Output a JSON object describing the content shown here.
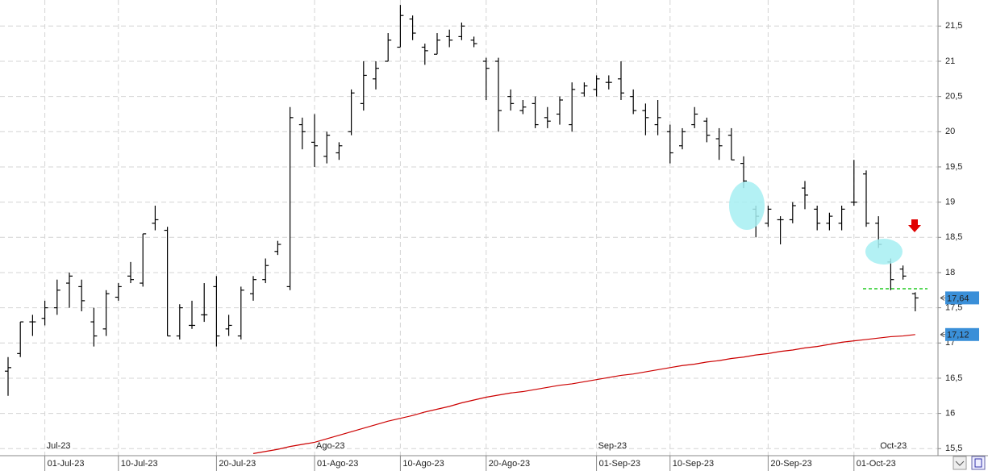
{
  "chart_data": {
    "type": "ohlc",
    "categories": [
      null,
      null,
      null,
      "01-Jul-23",
      null,
      null,
      null,
      null,
      null,
      "10-Jul-23",
      null,
      null,
      null,
      null,
      null,
      null,
      null,
      "20-Jul-23",
      null,
      null,
      null,
      null,
      null,
      null,
      null,
      "01-Ago-23",
      null,
      null,
      null,
      null,
      null,
      null,
      "10-Ago-23",
      null,
      null,
      null,
      null,
      null,
      null,
      "20-Ago-23",
      null,
      null,
      null,
      null,
      null,
      null,
      null,
      null,
      "01-Sep-23",
      null,
      null,
      null,
      null,
      null,
      "10-Sep-23",
      null,
      null,
      null,
      null,
      null,
      null,
      null,
      "20-Sep-23",
      null,
      null,
      null,
      null,
      null,
      null,
      "01-Oct-23",
      null,
      null,
      null,
      null,
      null
    ],
    "month_labels": [
      null,
      null,
      null,
      "Jul-23",
      null,
      null,
      null,
      null,
      null,
      null,
      null,
      null,
      null,
      null,
      null,
      null,
      null,
      null,
      null,
      null,
      null,
      null,
      null,
      null,
      null,
      "Ago-23",
      null,
      null,
      null,
      null,
      null,
      null,
      null,
      null,
      null,
      null,
      null,
      null,
      null,
      null,
      null,
      null,
      null,
      null,
      null,
      null,
      null,
      null,
      "Sep-23",
      null,
      null,
      null,
      null,
      null,
      null,
      null,
      null,
      null,
      null,
      null,
      null,
      null,
      null,
      null,
      null,
      null,
      null,
      null,
      null,
      null,
      null,
      "Oct-23",
      null,
      null,
      null,
      null,
      null
    ],
    "open": [
      16.6,
      16.85,
      17.3,
      17.35,
      17.5,
      17.85,
      17.8,
      17.3,
      17.2,
      17.65,
      17.95,
      17.85,
      18.7,
      18.6,
      17.1,
      17.25,
      17.4,
      17.8,
      17.2,
      17.1,
      17.7,
      17.9,
      18.3,
      17.8,
      20.1,
      19.85,
      19.65,
      19.7,
      20.0,
      20.4,
      20.75,
      21.0,
      21.2,
      21.6,
      21.2,
      21.1,
      21.35,
      21.35,
      21.3,
      21.0,
      21.0,
      20.5,
      20.3,
      20.4,
      20.2,
      20.25,
      20.1,
      20.55,
      20.6,
      20.7,
      20.75,
      20.5,
      20.3,
      20.1,
      20.0,
      19.8,
      20.1,
      20.15,
      19.9,
      19.95,
      19.55,
      18.9,
      18.7,
      18.75,
      18.75,
      19.2,
      18.9,
      18.7,
      18.7,
      19.0,
      19.4,
      18.7,
      18.15,
      18.05,
      17.7
    ],
    "high": [
      16.8,
      17.3,
      17.4,
      17.6,
      17.9,
      18.0,
      17.9,
      17.5,
      17.75,
      17.85,
      18.15,
      18.55,
      18.95,
      18.65,
      17.55,
      17.6,
      17.85,
      17.95,
      17.4,
      17.8,
      17.95,
      18.2,
      18.45,
      20.35,
      20.2,
      20.25,
      20.0,
      19.85,
      20.6,
      21.0,
      21.0,
      21.4,
      21.8,
      21.65,
      21.25,
      21.4,
      21.45,
      21.55,
      21.35,
      21.05,
      21.05,
      20.6,
      20.45,
      20.5,
      20.35,
      20.5,
      20.7,
      20.7,
      20.8,
      20.8,
      21.0,
      20.6,
      20.4,
      20.45,
      20.1,
      20.05,
      20.35,
      20.2,
      20.05,
      20.05,
      19.65,
      18.95,
      18.95,
      18.8,
      19.0,
      19.3,
      18.95,
      18.85,
      18.95,
      19.6,
      19.45,
      18.8,
      18.2,
      18.1,
      17.72
    ],
    "low": [
      16.25,
      16.8,
      17.1,
      17.25,
      17.4,
      17.5,
      17.45,
      16.95,
      17.1,
      17.6,
      17.85,
      17.8,
      18.6,
      17.1,
      17.05,
      17.2,
      17.3,
      16.95,
      17.1,
      17.05,
      17.6,
      17.85,
      18.25,
      17.75,
      19.75,
      19.5,
      19.55,
      19.6,
      19.95,
      20.3,
      20.6,
      21.0,
      21.2,
      21.3,
      20.95,
      21.1,
      21.2,
      21.3,
      21.2,
      20.45,
      20.0,
      20.3,
      20.25,
      20.05,
      20.05,
      20.1,
      20.0,
      20.5,
      20.5,
      20.6,
      20.45,
      20.25,
      19.95,
      19.95,
      19.55,
      19.75,
      20.05,
      19.85,
      19.6,
      19.6,
      19.2,
      18.5,
      18.65,
      18.4,
      18.7,
      18.9,
      18.6,
      18.6,
      18.6,
      18.95,
      18.65,
      18.35,
      17.75,
      17.9,
      17.45
    ],
    "close": [
      16.65,
      17.3,
      17.3,
      17.5,
      17.75,
      17.95,
      17.6,
      17.1,
      17.7,
      17.8,
      17.9,
      18.55,
      18.75,
      17.1,
      17.5,
      17.25,
      17.4,
      17.1,
      17.25,
      17.75,
      17.9,
      18.1,
      18.4,
      20.2,
      20.0,
      19.8,
      19.95,
      19.8,
      20.55,
      20.8,
      20.9,
      21.3,
      21.65,
      21.4,
      21.15,
      21.3,
      21.3,
      21.5,
      21.25,
      20.9,
      20.3,
      20.4,
      20.35,
      20.1,
      20.15,
      20.45,
      20.6,
      20.65,
      20.75,
      20.7,
      20.55,
      20.3,
      20.2,
      20.2,
      19.7,
      20.0,
      20.25,
      19.95,
      19.8,
      19.6,
      19.3,
      18.8,
      18.9,
      18.75,
      18.95,
      19.1,
      18.7,
      18.8,
      18.9,
      19.0,
      18.7,
      18.4,
      17.9,
      17.95,
      17.64
    ],
    "color": "#000000",
    "moving_average": {
      "color": "#cc0000",
      "values": [
        null,
        null,
        null,
        null,
        null,
        null,
        null,
        null,
        null,
        null,
        null,
        null,
        null,
        null,
        null,
        null,
        null,
        null,
        null,
        null,
        15.43,
        15.46,
        15.49,
        15.53,
        15.56,
        15.59,
        15.64,
        15.69,
        15.74,
        15.79,
        15.84,
        15.89,
        15.93,
        15.97,
        16.02,
        16.06,
        16.1,
        16.15,
        16.19,
        16.23,
        16.26,
        16.29,
        16.31,
        16.34,
        16.37,
        16.4,
        16.42,
        16.45,
        16.48,
        16.51,
        16.54,
        16.56,
        16.59,
        16.62,
        16.65,
        16.68,
        16.7,
        16.73,
        16.75,
        16.78,
        16.8,
        16.83,
        16.85,
        16.88,
        16.9,
        16.93,
        16.95,
        16.98,
        17.01,
        17.03,
        17.05,
        17.07,
        17.09,
        17.1,
        17.12
      ]
    },
    "support_level": {
      "value": 17.77,
      "color": "#22cc22"
    },
    "last_price": {
      "value": 17.64,
      "label": "17,64"
    },
    "moving_average_last": {
      "value": 17.12,
      "label": "17,12"
    },
    "ylim": [
      15.4,
      21.87
    ],
    "yticks": [
      {
        "value": 15.5,
        "label": "15,5"
      },
      16,
      {
        "value": 16.5,
        "label": "16,5"
      },
      17,
      {
        "value": 17.5,
        "label": "17,5"
      },
      18,
      {
        "value": 18.5,
        "label": "18,5"
      },
      19,
      {
        "value": 19.5,
        "label": "19,5"
      },
      20,
      {
        "value": 20.5,
        "label": "20,5"
      },
      21,
      {
        "value": 21.5,
        "label": "21,5"
      }
    ],
    "grid": true
  }
}
